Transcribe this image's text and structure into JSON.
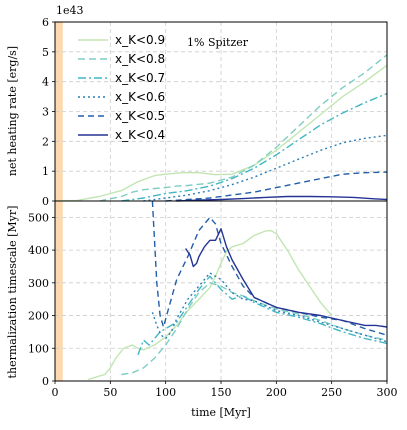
{
  "chart_data": [
    {
      "type": "line",
      "offset_text": "1e43",
      "ylabel": "net heating rate [erg/s]",
      "annotation": "1% Spitzer",
      "xlim": [
        0,
        300
      ],
      "ylim": [
        0,
        6
      ],
      "xticks": [
        "0",
        "50",
        "100",
        "150",
        "200",
        "250",
        "300"
      ],
      "yticks": [
        "0",
        "1",
        "2",
        "3",
        "4",
        "5",
        "6"
      ],
      "grid": true,
      "legend_position": "top-left",
      "shaded_band": {
        "x": [
          0,
          7
        ],
        "color": "#fdd9b0"
      },
      "series": [
        {
          "name": "x_K<0.9",
          "color": "#c2e6b3",
          "dash": "solid",
          "x": [
            0,
            20,
            40,
            60,
            75,
            90,
            100,
            115,
            130,
            145,
            160,
            180,
            200,
            220,
            240,
            260,
            280,
            300
          ],
          "y": [
            0,
            0.02,
            0.15,
            0.35,
            0.65,
            0.85,
            0.9,
            0.95,
            0.95,
            0.88,
            0.9,
            1.2,
            1.7,
            2.3,
            2.9,
            3.5,
            4.0,
            4.55
          ]
        },
        {
          "name": "x_K<0.8",
          "color": "#7ecdc2",
          "dash": "7,4",
          "x": [
            40,
            60,
            70,
            80,
            90,
            100,
            110,
            120,
            140,
            160,
            180,
            200,
            220,
            240,
            260,
            280,
            300
          ],
          "y": [
            0,
            0.15,
            0.3,
            0.38,
            0.42,
            0.45,
            0.5,
            0.52,
            0.6,
            0.8,
            1.2,
            1.8,
            2.5,
            3.2,
            3.8,
            4.3,
            4.9
          ]
        },
        {
          "name": "x_K<0.7",
          "color": "#41b6c4",
          "dash": "8,3,2,3",
          "x": [
            60,
            80,
            100,
            120,
            140,
            160,
            180,
            200,
            220,
            240,
            260,
            280,
            300
          ],
          "y": [
            0,
            0.1,
            0.25,
            0.35,
            0.5,
            0.75,
            1.1,
            1.55,
            2.05,
            2.55,
            2.95,
            3.3,
            3.6
          ]
        },
        {
          "name": "x_K<0.6",
          "color": "#2c7fb8",
          "dash": "2,3",
          "x": [
            80,
            100,
            120,
            140,
            160,
            180,
            200,
            220,
            240,
            260,
            280,
            300
          ],
          "y": [
            0,
            0.1,
            0.2,
            0.35,
            0.55,
            0.8,
            1.1,
            1.4,
            1.7,
            1.95,
            2.1,
            2.2
          ]
        },
        {
          "name": "x_K<0.5",
          "color": "#225ea8",
          "dash": "6,4",
          "x": [
            100,
            120,
            140,
            160,
            180,
            200,
            220,
            240,
            260,
            280,
            300
          ],
          "y": [
            0,
            0.05,
            0.1,
            0.2,
            0.3,
            0.45,
            0.6,
            0.75,
            0.9,
            0.95,
            0.97
          ]
        },
        {
          "name": "x_K<0.4",
          "color": "#253494",
          "dash": "solid",
          "x": [
            110,
            130,
            150,
            170,
            190,
            210,
            230,
            250,
            270,
            290,
            300
          ],
          "y": [
            0,
            0.03,
            0.05,
            0.08,
            0.12,
            0.15,
            0.15,
            0.14,
            0.12,
            0.07,
            0.05
          ]
        }
      ]
    },
    {
      "type": "line",
      "xlabel": "time [Myr]",
      "ylabel": "thermalization timescale [Myr]",
      "xlim": [
        0,
        300
      ],
      "ylim": [
        0,
        550
      ],
      "xticks": [
        "0",
        "50",
        "100",
        "150",
        "200",
        "250",
        "300"
      ],
      "yticks": [
        "0",
        "100",
        "200",
        "300",
        "400",
        "500"
      ],
      "grid": true,
      "shaded_band": {
        "x": [
          0,
          7
        ],
        "color": "#fdd9b0"
      },
      "series": [
        {
          "name": "x_K<0.9",
          "color": "#c2e6b3",
          "dash": "solid",
          "x": [
            30,
            40,
            45,
            50,
            55,
            62,
            70,
            75,
            80,
            90,
            100,
            110,
            120,
            130,
            140,
            145,
            150,
            155,
            160,
            170,
            180,
            190,
            195,
            200,
            210,
            220,
            230,
            240,
            250
          ],
          "y": [
            5,
            15,
            20,
            40,
            70,
            100,
            110,
            100,
            95,
            110,
            135,
            170,
            215,
            250,
            285,
            320,
            360,
            395,
            410,
            420,
            445,
            458,
            460,
            450,
            400,
            340,
            290,
            240,
            200
          ]
        },
        {
          "name": "x_K<0.8",
          "color": "#7ecdc2",
          "dash": "7,4",
          "x": [
            60,
            70,
            80,
            90,
            100,
            110,
            120,
            130,
            140,
            150,
            160,
            170,
            180,
            200,
            220,
            240,
            260,
            280,
            300
          ],
          "y": [
            20,
            25,
            40,
            70,
            110,
            160,
            220,
            270,
            300,
            290,
            270,
            260,
            245,
            220,
            205,
            185,
            160,
            140,
            125
          ]
        },
        {
          "name": "x_K<0.7",
          "color": "#41b6c4",
          "dash": "8,3,2,3",
          "x": [
            75,
            80,
            85,
            90,
            95,
            100,
            110,
            120,
            130,
            140,
            150,
            160,
            170,
            180,
            200,
            220,
            240,
            260,
            280,
            300
          ],
          "y": [
            80,
            125,
            110,
            130,
            150,
            160,
            180,
            230,
            280,
            320,
            280,
            250,
            260,
            240,
            210,
            195,
            175,
            150,
            130,
            115
          ]
        },
        {
          "name": "x_K<0.6",
          "color": "#2c7fb8",
          "dash": "2,3",
          "x": [
            88,
            92,
            96,
            100,
            105,
            110,
            120,
            130,
            140,
            150,
            160,
            170,
            180,
            200,
            220,
            240,
            260,
            280,
            300
          ],
          "y": [
            210,
            170,
            140,
            130,
            150,
            190,
            250,
            290,
            330,
            310,
            270,
            250,
            245,
            215,
            200,
            180,
            160,
            140,
            120
          ]
        },
        {
          "name": "x_K<0.5",
          "color": "#225ea8",
          "dash": "6,4",
          "x": [
            88,
            92,
            95,
            98,
            100,
            105,
            110,
            120,
            130,
            140,
            145,
            150,
            160,
            170,
            180,
            200,
            220,
            240,
            260,
            280,
            300
          ],
          "y": [
            560,
            300,
            200,
            165,
            190,
            250,
            310,
            380,
            460,
            500,
            480,
            420,
            350,
            290,
            255,
            225,
            210,
            195,
            185,
            160,
            140
          ]
        },
        {
          "name": "x_K<0.4",
          "color": "#253494",
          "dash": "solid",
          "x": [
            118,
            122,
            125,
            128,
            130,
            135,
            140,
            145,
            150,
            155,
            160,
            170,
            180,
            200,
            220,
            240,
            260,
            280,
            290,
            300
          ],
          "y": [
            405,
            385,
            350,
            360,
            380,
            410,
            430,
            430,
            465,
            410,
            370,
            310,
            255,
            225,
            210,
            200,
            185,
            170,
            170,
            165
          ]
        }
      ]
    }
  ]
}
